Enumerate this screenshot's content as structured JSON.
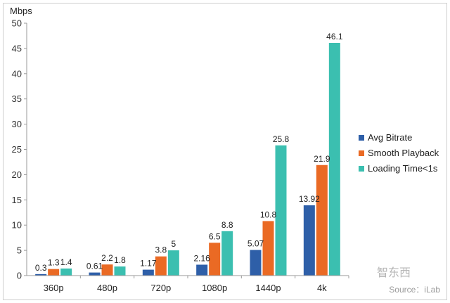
{
  "chart_data": {
    "type": "bar",
    "title": "",
    "ylabel": "Mbps",
    "xlabel": "",
    "ylim": [
      0,
      50
    ],
    "yticks": [
      0,
      5,
      10,
      15,
      20,
      25,
      30,
      35,
      40,
      45,
      50
    ],
    "grid": false,
    "legend_position": "right",
    "categories": [
      "360p",
      "480p",
      "720p",
      "1080p",
      "1440p",
      "4k"
    ],
    "series": [
      {
        "name": "Avg Bitrate",
        "color": "#2e5fa8",
        "values": [
          0.3,
          0.61,
          1.17,
          2.16,
          5.07,
          13.92
        ],
        "labels": [
          "0.3",
          "0.61",
          "1.17",
          "2.16",
          "5.07",
          "13.92"
        ]
      },
      {
        "name": "Smooth Playback",
        "color": "#ea6a24",
        "values": [
          1.3,
          2.2,
          3.8,
          6.5,
          10.8,
          21.9
        ],
        "labels": [
          "1.3",
          "2.2",
          "3.8",
          "6.5",
          "10.8",
          "21.9"
        ]
      },
      {
        "name": "Loading Time<1s",
        "color": "#3bbfb0",
        "values": [
          1.4,
          1.8,
          5,
          8.8,
          25.8,
          46.1
        ],
        "labels": [
          "1.4",
          "1.8",
          "5",
          "8.8",
          "25.8",
          "46.1"
        ]
      }
    ]
  },
  "watermark": {
    "logo": "智东西",
    "source": "Source：iLab"
  }
}
